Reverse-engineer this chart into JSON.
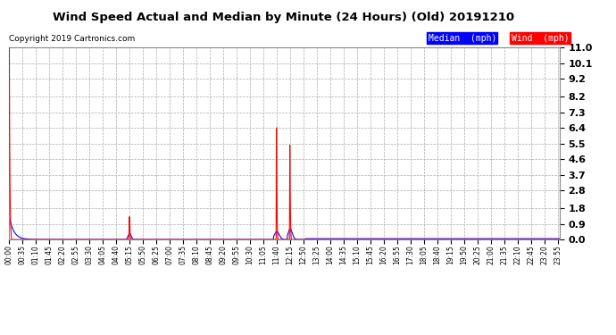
{
  "title": "Wind Speed Actual and Median by Minute (24 Hours) (Old) 20191210",
  "copyright": "Copyright 2019 Cartronics.com",
  "background_color": "#ffffff",
  "plot_bg_color": "#ffffff",
  "grid_color": "#aaaaaa",
  "y_ticks": [
    0.0,
    0.9,
    1.8,
    2.8,
    3.7,
    4.6,
    5.5,
    6.4,
    7.3,
    8.2,
    9.2,
    10.1,
    11.0
  ],
  "ylim": [
    0.0,
    11.0
  ],
  "total_minutes": 1440,
  "wind_color": "#ff0000",
  "median_color": "#0000ff",
  "legend_median_bg": "#0000ff",
  "legend_wind_bg": "#ff0000",
  "legend_text_color": "#ffffff",
  "x_tick_minutes": [
    0,
    35,
    70,
    105,
    140,
    175,
    210,
    245,
    280,
    315,
    350,
    385,
    420,
    455,
    490,
    525,
    560,
    595,
    630,
    665,
    700,
    735,
    770,
    805,
    840,
    875,
    910,
    945,
    980,
    1015,
    1050,
    1085,
    1120,
    1155,
    1190,
    1225,
    1260,
    1295,
    1330,
    1365,
    1400,
    1435
  ],
  "x_tick_labels": [
    "00:00",
    "00:35",
    "01:10",
    "01:45",
    "02:20",
    "02:55",
    "03:30",
    "04:05",
    "04:40",
    "05:15",
    "05:50",
    "06:25",
    "07:00",
    "07:35",
    "08:10",
    "08:45",
    "09:20",
    "09:55",
    "10:30",
    "11:05",
    "11:40",
    "12:15",
    "12:50",
    "13:25",
    "14:00",
    "14:35",
    "15:10",
    "15:45",
    "16:20",
    "16:55",
    "17:30",
    "18:05",
    "18:40",
    "19:15",
    "19:50",
    "20:25",
    "21:00",
    "21:35",
    "22:10",
    "22:45",
    "23:20",
    "23:55"
  ]
}
